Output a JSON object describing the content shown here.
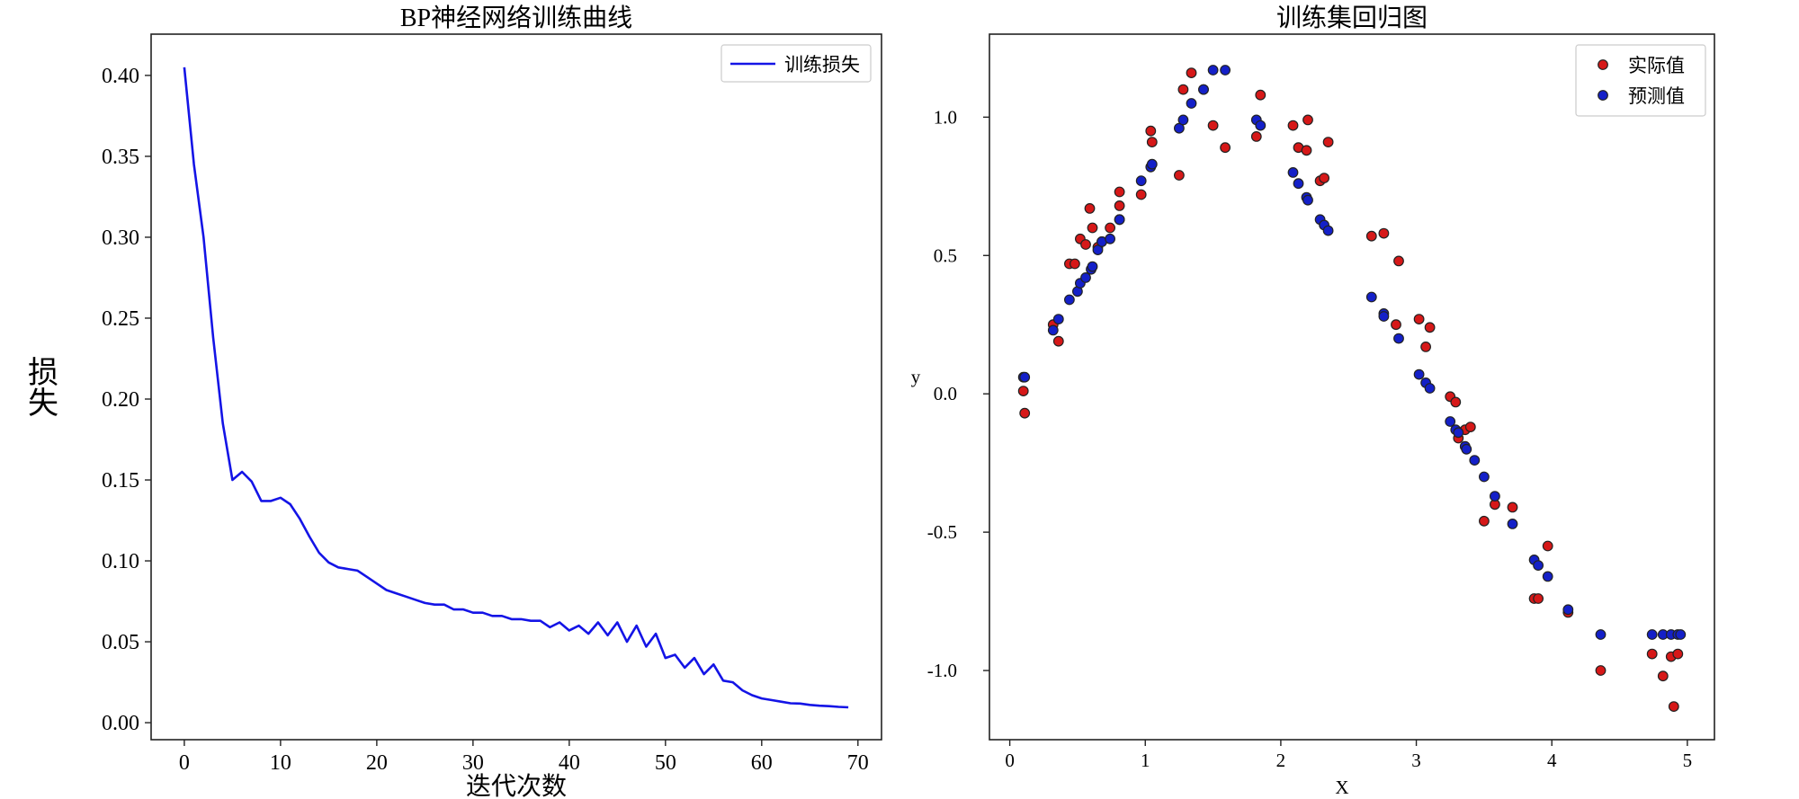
{
  "chart_data": [
    {
      "type": "line",
      "title": "BP神经网络训练曲线",
      "xlabel": "迭代次数",
      "ylabel": "损失",
      "xlim": [
        -3.45,
        72.45
      ],
      "ylim": [
        -0.0105,
        0.4255
      ],
      "xticks": [
        "0",
        "10",
        "20",
        "30",
        "40",
        "50",
        "60",
        "70"
      ],
      "yticks": [
        "0.00",
        "0.05",
        "0.10",
        "0.15",
        "0.20",
        "0.25",
        "0.30",
        "0.35",
        "0.40"
      ],
      "grid": false,
      "legend": "top-right",
      "colors": {
        "line": "#1414e6"
      },
      "series": [
        {
          "name": "训练损失",
          "x": [
            0,
            1,
            2,
            3,
            4,
            5,
            6,
            7,
            8,
            9,
            10,
            11,
            12,
            13,
            14,
            15,
            16,
            17,
            18,
            19,
            20,
            21,
            22,
            23,
            24,
            25,
            26,
            27,
            28,
            29,
            30,
            31,
            32,
            33,
            34,
            35,
            36,
            37,
            38,
            39,
            40,
            41,
            42,
            43,
            44,
            45,
            46,
            47,
            48,
            49,
            50,
            51,
            52,
            53,
            54,
            55,
            56,
            57,
            58,
            59,
            60,
            61,
            62,
            63,
            64,
            65,
            66,
            67,
            68,
            69
          ],
          "y": [
            0.405,
            0.345,
            0.3,
            0.238,
            0.185,
            0.15,
            0.155,
            0.149,
            0.137,
            0.137,
            0.139,
            0.135,
            0.126,
            0.115,
            0.105,
            0.099,
            0.096,
            0.095,
            0.094,
            0.09,
            0.086,
            0.082,
            0.08,
            0.078,
            0.076,
            0.074,
            0.073,
            0.073,
            0.07,
            0.07,
            0.068,
            0.068,
            0.066,
            0.066,
            0.064,
            0.064,
            0.063,
            0.063,
            0.059,
            0.062,
            0.057,
            0.06,
            0.055,
            0.062,
            0.054,
            0.062,
            0.05,
            0.06,
            0.047,
            0.055,
            0.04,
            0.042,
            0.034,
            0.04,
            0.03,
            0.036,
            0.026,
            0.025,
            0.02,
            0.017,
            0.015,
            0.014,
            0.013,
            0.012,
            0.0118,
            0.011,
            0.0105,
            0.0102,
            0.0098,
            0.0095
          ]
        }
      ]
    },
    {
      "type": "scatter",
      "title": "训练集回归图",
      "xlabel": "X",
      "ylabel": "y",
      "xlim": [
        -0.15,
        5.2
      ],
      "ylim": [
        -1.25,
        1.3
      ],
      "xticks": [
        "0",
        "1",
        "2",
        "3",
        "4",
        "5"
      ],
      "yticks": [
        "1.0",
        "0.5",
        "0.0",
        "-0.5",
        "-1.0"
      ],
      "grid": false,
      "legend": "top-right",
      "colors": {
        "actual": "#d61818",
        "predicted": "#1420c8",
        "edge": "#222222"
      },
      "series": [
        {
          "name": "实际值",
          "points": [
            [
              0.1,
              0.01
            ],
            [
              0.11,
              -0.07
            ],
            [
              0.32,
              0.25
            ],
            [
              0.36,
              0.19
            ],
            [
              0.44,
              0.47
            ],
            [
              0.48,
              0.47
            ],
            [
              0.52,
              0.56
            ],
            [
              0.56,
              0.54
            ],
            [
              0.59,
              0.67
            ],
            [
              0.61,
              0.6
            ],
            [
              0.65,
              0.53
            ],
            [
              0.68,
              0.55
            ],
            [
              0.74,
              0.6
            ],
            [
              0.81,
              0.73
            ],
            [
              0.81,
              0.68
            ],
            [
              0.97,
              0.72
            ],
            [
              1.04,
              0.95
            ],
            [
              1.05,
              0.91
            ],
            [
              1.25,
              0.79
            ],
            [
              1.28,
              1.1
            ],
            [
              1.34,
              1.16
            ],
            [
              1.43,
              1.1
            ],
            [
              1.5,
              0.97
            ],
            [
              1.59,
              0.89
            ],
            [
              1.82,
              0.93
            ],
            [
              1.85,
              1.08
            ],
            [
              2.09,
              0.97
            ],
            [
              2.13,
              0.89
            ],
            [
              2.19,
              0.88
            ],
            [
              2.2,
              0.99
            ],
            [
              2.29,
              0.77
            ],
            [
              2.32,
              0.78
            ],
            [
              2.35,
              0.91
            ],
            [
              2.67,
              0.57
            ],
            [
              2.76,
              0.58
            ],
            [
              2.85,
              0.25
            ],
            [
              2.87,
              0.48
            ],
            [
              3.02,
              0.27
            ],
            [
              3.07,
              0.17
            ],
            [
              3.1,
              0.24
            ],
            [
              3.25,
              -0.01
            ],
            [
              3.29,
              -0.03
            ],
            [
              3.31,
              -0.16
            ],
            [
              3.36,
              -0.13
            ],
            [
              3.4,
              -0.12
            ],
            [
              3.5,
              -0.46
            ],
            [
              3.58,
              -0.4
            ],
            [
              3.71,
              -0.41
            ],
            [
              3.87,
              -0.74
            ],
            [
              3.9,
              -0.74
            ],
            [
              3.97,
              -0.55
            ],
            [
              4.12,
              -0.79
            ],
            [
              4.36,
              -1.0
            ],
            [
              4.74,
              -0.94
            ],
            [
              4.82,
              -1.02
            ],
            [
              4.88,
              -0.95
            ],
            [
              4.9,
              -1.13
            ],
            [
              4.93,
              -0.94
            ]
          ]
        },
        {
          "name": "预测值",
          "points": [
            [
              0.1,
              0.06
            ],
            [
              0.11,
              0.06
            ],
            [
              0.32,
              0.23
            ],
            [
              0.36,
              0.27
            ],
            [
              0.44,
              0.34
            ],
            [
              0.5,
              0.37
            ],
            [
              0.52,
              0.4
            ],
            [
              0.56,
              0.42
            ],
            [
              0.6,
              0.45
            ],
            [
              0.61,
              0.46
            ],
            [
              0.65,
              0.52
            ],
            [
              0.68,
              0.55
            ],
            [
              0.74,
              0.56
            ],
            [
              0.81,
              0.63
            ],
            [
              0.81,
              0.63
            ],
            [
              0.97,
              0.77
            ],
            [
              1.04,
              0.82
            ],
            [
              1.05,
              0.83
            ],
            [
              1.25,
              0.96
            ],
            [
              1.28,
              0.99
            ],
            [
              1.34,
              1.05
            ],
            [
              1.43,
              1.1
            ],
            [
              1.5,
              1.17
            ],
            [
              1.59,
              1.17
            ],
            [
              1.82,
              0.99
            ],
            [
              1.85,
              0.97
            ],
            [
              2.09,
              0.8
            ],
            [
              2.13,
              0.76
            ],
            [
              2.19,
              0.71
            ],
            [
              2.2,
              0.7
            ],
            [
              2.29,
              0.63
            ],
            [
              2.32,
              0.61
            ],
            [
              2.35,
              0.59
            ],
            [
              2.67,
              0.35
            ],
            [
              2.76,
              0.29
            ],
            [
              2.76,
              0.28
            ],
            [
              2.87,
              0.2
            ],
            [
              3.02,
              0.07
            ],
            [
              3.07,
              0.04
            ],
            [
              3.1,
              0.02
            ],
            [
              3.25,
              -0.1
            ],
            [
              3.29,
              -0.13
            ],
            [
              3.31,
              -0.14
            ],
            [
              3.36,
              -0.19
            ],
            [
              3.37,
              -0.2
            ],
            [
              3.43,
              -0.24
            ],
            [
              3.5,
              -0.3
            ],
            [
              3.58,
              -0.37
            ],
            [
              3.71,
              -0.47
            ],
            [
              3.87,
              -0.6
            ],
            [
              3.9,
              -0.62
            ],
            [
              3.97,
              -0.66
            ],
            [
              4.12,
              -0.78
            ],
            [
              4.36,
              -0.87
            ],
            [
              4.74,
              -0.87
            ],
            [
              4.82,
              -0.87
            ],
            [
              4.88,
              -0.87
            ],
            [
              4.93,
              -0.87
            ],
            [
              4.95,
              -0.87
            ]
          ]
        }
      ]
    }
  ]
}
